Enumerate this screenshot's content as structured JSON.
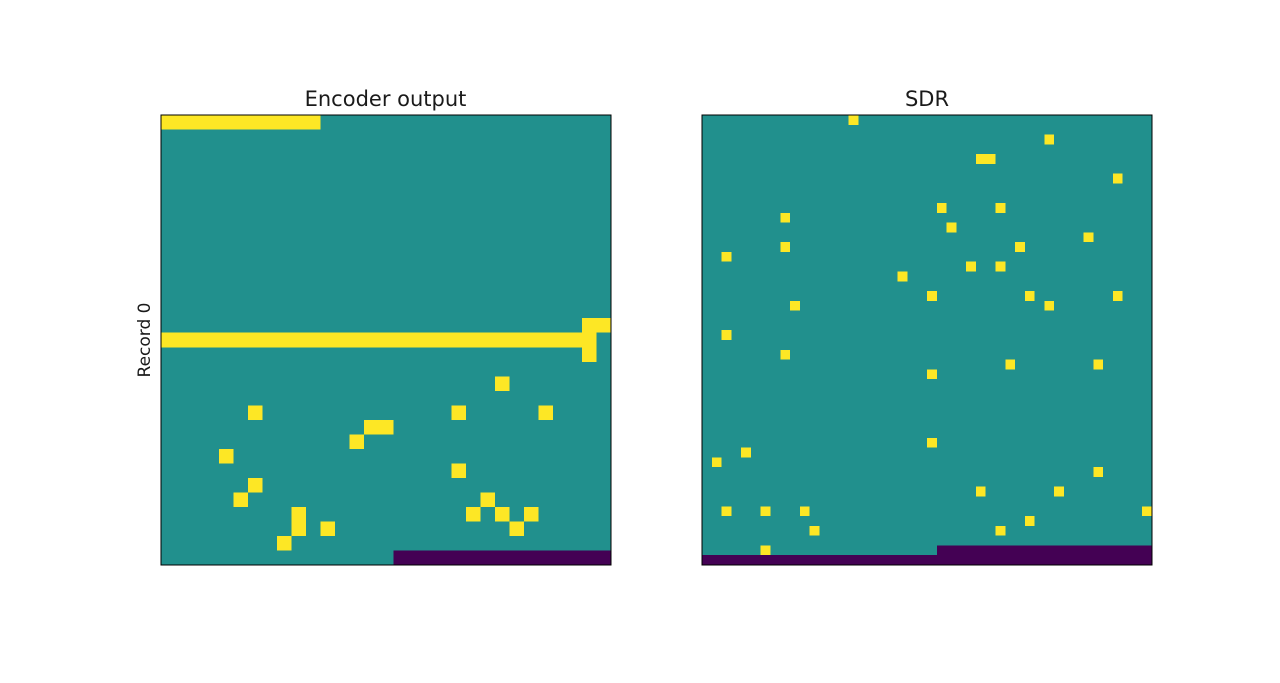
{
  "row_label": "Record 0",
  "colors": {
    "background": "#21908d",
    "active": "#fde725",
    "padding": "#440154",
    "frame": "#000000"
  },
  "chart_data": [
    {
      "type": "heatmap",
      "title": "Encoder output",
      "ylabel": "Record 0",
      "grid_size": [
        31,
        31
      ],
      "fill_value": 0,
      "value_scale": {
        "0": "teal",
        "1": "yellow",
        "-1": "purple"
      },
      "segments": [
        {
          "value": 1,
          "row": 0,
          "col_start": 0,
          "col_end": 10
        },
        {
          "value": 1,
          "row": 15,
          "col_start": 0,
          "col_end": 28
        },
        {
          "value": 1,
          "row": 14,
          "col_start": 29,
          "col_end": 30
        },
        {
          "value": -1,
          "row": 30,
          "col_start": 16,
          "col_end": 30
        },
        {
          "value": 1,
          "row": 21,
          "col_start": 14,
          "col_end": 15
        }
      ],
      "points": [
        [
          14,
          29
        ],
        [
          15,
          29
        ],
        [
          16,
          29
        ],
        [
          18,
          23
        ],
        [
          20,
          6
        ],
        [
          20,
          20
        ],
        [
          20,
          26
        ],
        [
          22,
          13
        ],
        [
          23,
          4
        ],
        [
          24,
          20
        ],
        [
          25,
          6
        ],
        [
          26,
          5
        ],
        [
          26,
          22
        ],
        [
          27,
          9
        ],
        [
          27,
          21
        ],
        [
          27,
          23
        ],
        [
          27,
          25
        ],
        [
          28,
          9
        ],
        [
          28,
          11
        ],
        [
          28,
          24
        ],
        [
          29,
          8
        ]
      ]
    },
    {
      "type": "heatmap",
      "title": "SDR",
      "grid_size": [
        46,
        46
      ],
      "fill_value": 0,
      "value_scale": {
        "0": "teal",
        "1": "yellow",
        "-1": "purple"
      },
      "segments": [
        {
          "value": 1,
          "row": 4,
          "col_start": 28,
          "col_end": 29
        },
        {
          "value": -1,
          "row": 44,
          "col_start": 24,
          "col_end": 45
        },
        {
          "value": -1,
          "row": 45,
          "col_start": 0,
          "col_end": 45
        }
      ],
      "points": [
        [
          0,
          15
        ],
        [
          2,
          35
        ],
        [
          6,
          42
        ],
        [
          9,
          24
        ],
        [
          9,
          30
        ],
        [
          10,
          8
        ],
        [
          11,
          25
        ],
        [
          12,
          39
        ],
        [
          13,
          8
        ],
        [
          13,
          32
        ],
        [
          14,
          2
        ],
        [
          15,
          27
        ],
        [
          15,
          30
        ],
        [
          16,
          20
        ],
        [
          18,
          23
        ],
        [
          18,
          33
        ],
        [
          18,
          42
        ],
        [
          19,
          9
        ],
        [
          19,
          35
        ],
        [
          22,
          2
        ],
        [
          24,
          8
        ],
        [
          25,
          31
        ],
        [
          25,
          40
        ],
        [
          26,
          23
        ],
        [
          33,
          23
        ],
        [
          34,
          4
        ],
        [
          35,
          1
        ],
        [
          36,
          40
        ],
        [
          38,
          28
        ],
        [
          38,
          36
        ],
        [
          40,
          2
        ],
        [
          40,
          6
        ],
        [
          40,
          10
        ],
        [
          40,
          45
        ],
        [
          41,
          33
        ],
        [
          42,
          11
        ],
        [
          42,
          30
        ],
        [
          44,
          6
        ]
      ]
    }
  ]
}
